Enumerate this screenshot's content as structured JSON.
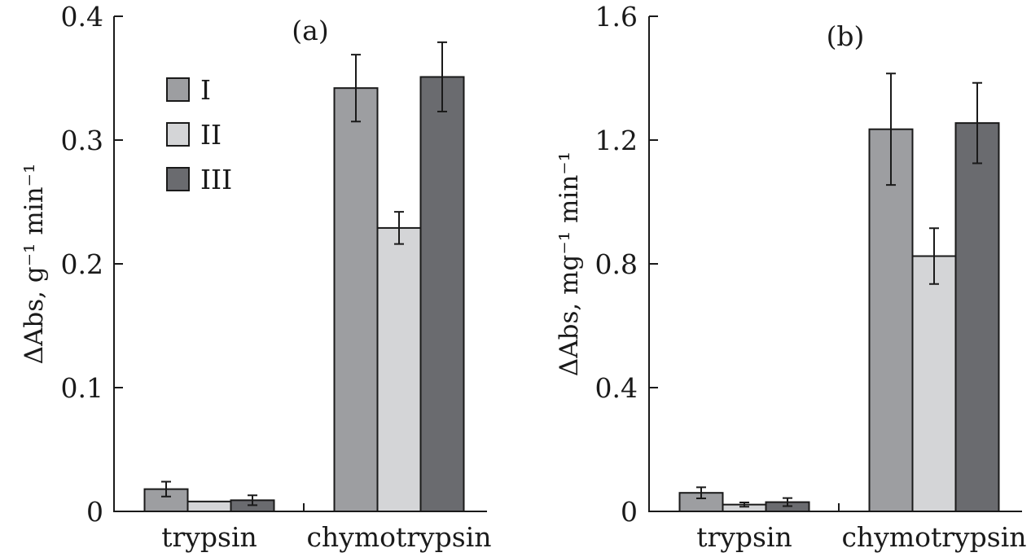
{
  "chart_data": [
    {
      "type": "bar",
      "panel_label": "(a)",
      "ylabel": "ΔAbs, g⁻¹ min⁻¹",
      "ylim": [
        0,
        0.4
      ],
      "yticks": [
        {
          "value": 0,
          "label": "0"
        },
        {
          "value": 0.1,
          "label": "0.1"
        },
        {
          "value": 0.2,
          "label": "0.2"
        },
        {
          "value": 0.3,
          "label": "0.3"
        },
        {
          "value": 0.4,
          "label": "0.4"
        }
      ],
      "categories": [
        "trypsin",
        "chymotrypsin"
      ],
      "series": [
        {
          "name": "I",
          "color": "#9d9ea1",
          "values": [
            0.018,
            0.342
          ],
          "errors": [
            0.006,
            0.027
          ]
        },
        {
          "name": "II",
          "color": "#d4d5d7",
          "values": [
            0.008,
            0.229
          ],
          "errors": [
            0.0,
            0.013
          ]
        },
        {
          "name": "III",
          "color": "#6a6b6f",
          "values": [
            0.009,
            0.351
          ],
          "errors": [
            0.004,
            0.028
          ]
        }
      ],
      "legend": {
        "position": "top-left",
        "entries": [
          "I",
          "II",
          "III"
        ]
      }
    },
    {
      "type": "bar",
      "panel_label": "(b)",
      "ylabel": "ΔAbs, mg⁻¹ min⁻¹",
      "ylim": [
        0,
        1.6
      ],
      "yticks": [
        {
          "value": 0,
          "label": "0"
        },
        {
          "value": 0.4,
          "label": "0.4"
        },
        {
          "value": 0.8,
          "label": "0.8"
        },
        {
          "value": 1.2,
          "label": "1.2"
        },
        {
          "value": 1.6,
          "label": "1.6"
        }
      ],
      "categories": [
        "trypsin",
        "chymotrypsin"
      ],
      "series": [
        {
          "name": "I",
          "color": "#9d9ea1",
          "values": [
            0.06,
            1.235
          ],
          "errors": [
            0.018,
            0.18
          ]
        },
        {
          "name": "II",
          "color": "#d4d5d7",
          "values": [
            0.022,
            0.825
          ],
          "errors": [
            0.007,
            0.09
          ]
        },
        {
          "name": "III",
          "color": "#6a6b6f",
          "values": [
            0.03,
            1.255
          ],
          "errors": [
            0.013,
            0.13
          ]
        }
      ]
    }
  ]
}
